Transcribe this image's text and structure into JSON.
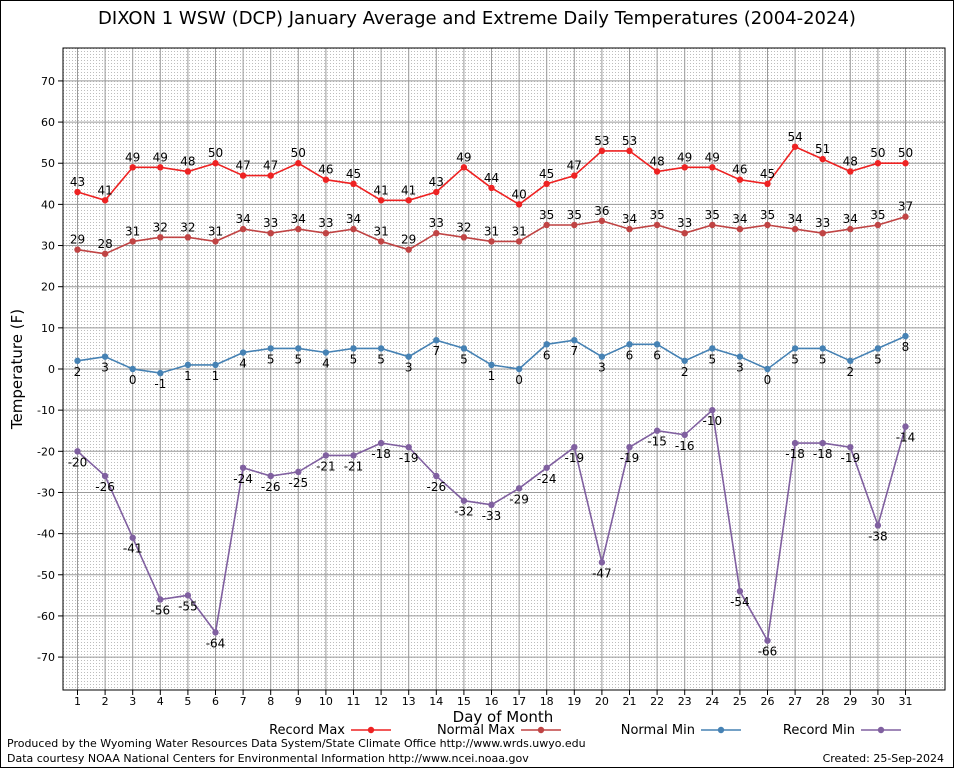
{
  "chart_data": {
    "type": "line",
    "title": "DIXON 1 WSW (DCP) January Average and Extreme Daily Temperatures (2004-2024)",
    "xlabel": "Day of Month",
    "ylabel": "Temperature (F)",
    "ylim": [
      -78,
      78
    ],
    "yticks": [
      -70,
      -60,
      -50,
      -40,
      -30,
      -20,
      -10,
      0,
      10,
      20,
      30,
      40,
      50,
      60,
      70
    ],
    "grid": true,
    "legend_position": "bottom",
    "x": [
      1,
      2,
      3,
      4,
      5,
      6,
      7,
      8,
      9,
      10,
      11,
      12,
      13,
      14,
      15,
      16,
      17,
      18,
      19,
      20,
      21,
      22,
      23,
      24,
      25,
      26,
      27,
      28,
      29,
      30,
      31
    ],
    "series": [
      {
        "name": "Record Max",
        "color": "#ee2222",
        "label_position": "above",
        "values": [
          43,
          41,
          49,
          49,
          48,
          50,
          47,
          47,
          50,
          46,
          45,
          41,
          41,
          43,
          49,
          44,
          40,
          45,
          47,
          53,
          53,
          48,
          49,
          49,
          46,
          45,
          54,
          51,
          48,
          50,
          50
        ]
      },
      {
        "name": "Normal Max",
        "color": "#c04444",
        "label_position": "above",
        "values": [
          29,
          28,
          31,
          32,
          32,
          31,
          34,
          33,
          34,
          33,
          34,
          31,
          29,
          33,
          32,
          31,
          31,
          35,
          35,
          36,
          34,
          35,
          33,
          35,
          34,
          35,
          34,
          33,
          34,
          35,
          37
        ]
      },
      {
        "name": "Normal Min",
        "color": "#4682b4",
        "label_position": "below",
        "values": [
          2,
          3,
          0,
          -1,
          1,
          1,
          4,
          5,
          5,
          4,
          5,
          5,
          3,
          7,
          5,
          1,
          0,
          6,
          7,
          3,
          6,
          6,
          2,
          5,
          3,
          0,
          5,
          5,
          2,
          5,
          8
        ]
      },
      {
        "name": "Record Min",
        "color": "#8060a0",
        "label_position": "below",
        "values": [
          -20,
          -26,
          -41,
          -56,
          -55,
          -64,
          -24,
          -26,
          -25,
          -21,
          -21,
          -18,
          -19,
          -26,
          -32,
          -33,
          -29,
          -24,
          -19,
          -47,
          -19,
          -15,
          -16,
          -10,
          -54,
          -66,
          -18,
          -18,
          -19,
          -38,
          -14
        ]
      }
    ]
  },
  "footer": {
    "line1": "Produced by the Wyoming Water Resources Data System/State Climate Office http://www.wrds.uwyo.edu",
    "line2": "Data courtesy NOAA National Centers for Environmental Information http://www.ncei.noaa.gov",
    "created": "Created:  25-Sep-2024"
  }
}
